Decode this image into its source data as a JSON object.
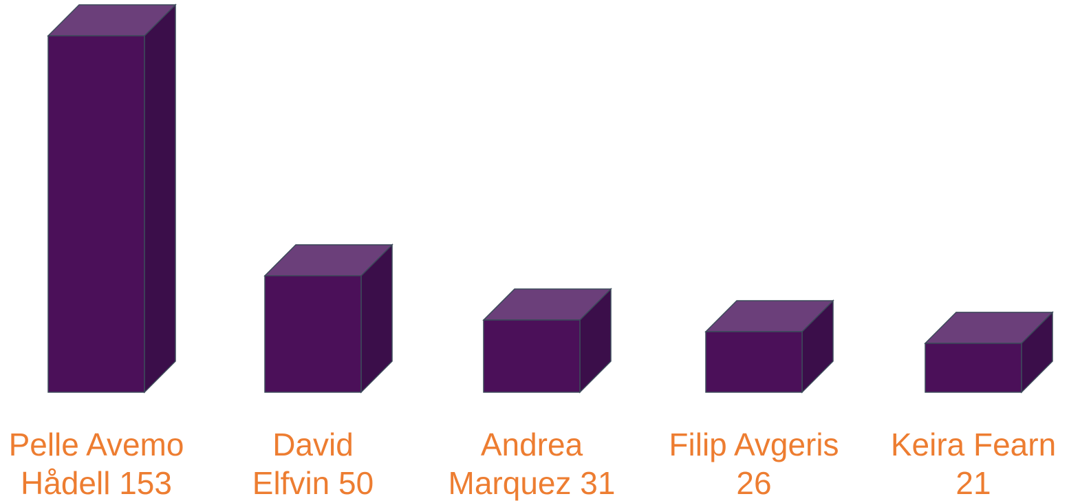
{
  "chart_data": {
    "type": "bar3d",
    "categories": [
      "Pelle Avemo Hådell",
      "David Elfvin",
      "Andrea Marquez",
      "Filip Avgeris",
      "Keira Fearn"
    ],
    "values": [
      153,
      50,
      31,
      26,
      21
    ],
    "color": "#4b1059",
    "side_color": "#3b0e4a",
    "top_color": "#6b3f7a",
    "label_color": "#ed7d31"
  }
}
